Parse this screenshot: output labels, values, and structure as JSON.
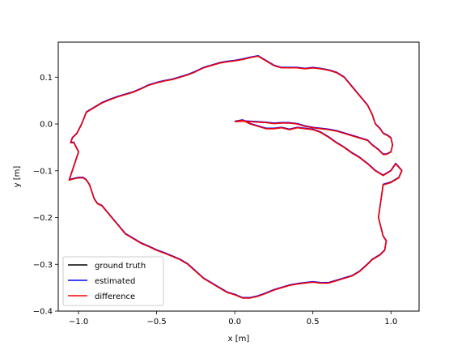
{
  "chart_data": {
    "type": "line",
    "title": "",
    "xlabel": "x [m]",
    "ylabel": "y [m]",
    "xlim": [
      -1.13,
      1.18
    ],
    "ylim": [
      -0.4,
      0.175
    ],
    "xticks": [
      -1.0,
      -0.5,
      0.0,
      0.5,
      1.0
    ],
    "xtick_labels": [
      "−1.0",
      "−0.5",
      "0.0",
      "0.5",
      "1.0"
    ],
    "yticks": [
      -0.4,
      -0.3,
      -0.2,
      -0.1,
      0.0,
      0.1
    ],
    "ytick_labels": [
      "−0.4",
      "−0.3",
      "−0.2",
      "−0.1",
      "0.0",
      "0.1"
    ],
    "grid": false,
    "legend_placement": "lower-left",
    "series": [
      {
        "name": "ground truth",
        "color": "#000000",
        "x": [
          0.0,
          0.05,
          0.1,
          0.15,
          0.2,
          0.25,
          0.3,
          0.35,
          0.4,
          0.45,
          0.5,
          0.55,
          0.6,
          0.65,
          0.7,
          0.75,
          0.8,
          0.85,
          0.9,
          0.95,
          1.0,
          1.03,
          1.07,
          1.05,
          1.0,
          0.95,
          0.92,
          0.95,
          0.97,
          0.96,
          0.93,
          0.88,
          0.85,
          0.8,
          0.75,
          0.7,
          0.65,
          0.6,
          0.55,
          0.5,
          0.45,
          0.4,
          0.35,
          0.3,
          0.25,
          0.2,
          0.15,
          0.1,
          0.05,
          0.0,
          -0.05,
          -0.1,
          -0.15,
          -0.2,
          -0.25,
          -0.3,
          -0.35,
          -0.4,
          -0.45,
          -0.5,
          -0.55,
          -0.6,
          -0.65,
          -0.7,
          -0.75,
          -0.8,
          -0.85,
          -0.88,
          -0.9,
          -0.91,
          -0.93,
          -0.95,
          -0.97,
          -1.0,
          -1.04,
          -1.06,
          -1.02,
          -1.0,
          -1.03,
          -1.05,
          -1.04,
          -1.01,
          -0.98,
          -0.95,
          -0.9,
          -0.85,
          -0.8,
          -0.75,
          -0.7,
          -0.65,
          -0.6,
          -0.55,
          -0.5,
          -0.45,
          -0.4,
          -0.35,
          -0.3,
          -0.25,
          -0.2,
          -0.15,
          -0.1,
          -0.05,
          0.0,
          0.05,
          0.1,
          0.15,
          0.2,
          0.25,
          0.3,
          0.35,
          0.4,
          0.45,
          0.5,
          0.55,
          0.6,
          0.65,
          0.7,
          0.75,
          0.8,
          0.85,
          0.88,
          0.9,
          0.93,
          0.95,
          0.98,
          1.0,
          1.01,
          1.0,
          0.97,
          0.95,
          0.92,
          0.88,
          0.85,
          0.8,
          0.75,
          0.7,
          0.65,
          0.6,
          0.55,
          0.5,
          0.45,
          0.4,
          0.35,
          0.3,
          0.25,
          0.2,
          0.15,
          0.1,
          0.05,
          0.0
        ],
        "y": [
          0.005,
          0.008,
          0.0,
          -0.005,
          -0.01,
          -0.01,
          -0.008,
          -0.012,
          -0.008,
          -0.01,
          -0.012,
          -0.018,
          -0.028,
          -0.04,
          -0.05,
          -0.062,
          -0.072,
          -0.085,
          -0.1,
          -0.11,
          -0.1,
          -0.085,
          -0.1,
          -0.115,
          -0.125,
          -0.13,
          -0.2,
          -0.24,
          -0.25,
          -0.27,
          -0.28,
          -0.29,
          -0.3,
          -0.315,
          -0.325,
          -0.33,
          -0.335,
          -0.34,
          -0.34,
          -0.338,
          -0.34,
          -0.342,
          -0.345,
          -0.35,
          -0.355,
          -0.362,
          -0.368,
          -0.372,
          -0.372,
          -0.365,
          -0.36,
          -0.35,
          -0.34,
          -0.33,
          -0.315,
          -0.3,
          -0.29,
          -0.283,
          -0.276,
          -0.27,
          -0.262,
          -0.255,
          -0.245,
          -0.235,
          -0.215,
          -0.195,
          -0.175,
          -0.17,
          -0.16,
          -0.15,
          -0.13,
          -0.12,
          -0.115,
          -0.115,
          -0.118,
          -0.12,
          -0.08,
          -0.06,
          -0.04,
          -0.04,
          -0.03,
          -0.02,
          -0.0,
          0.025,
          0.035,
          0.045,
          0.052,
          0.058,
          0.063,
          0.068,
          0.075,
          0.083,
          0.088,
          0.092,
          0.095,
          0.1,
          0.105,
          0.112,
          0.12,
          0.125,
          0.13,
          0.133,
          0.135,
          0.138,
          0.142,
          0.145,
          0.135,
          0.125,
          0.12,
          0.12,
          0.12,
          0.118,
          0.12,
          0.118,
          0.115,
          0.11,
          0.1,
          0.08,
          0.06,
          0.04,
          0.02,
          0.0,
          -0.01,
          -0.02,
          -0.025,
          -0.03,
          -0.045,
          -0.06,
          -0.065,
          -0.065,
          -0.055,
          -0.045,
          -0.035,
          -0.03,
          -0.025,
          -0.02,
          -0.015,
          -0.012,
          -0.01,
          -0.008,
          -0.005,
          0.0,
          0.002,
          0.002,
          0.001,
          0.003,
          0.004,
          0.005,
          0.006,
          0.005
        ]
      },
      {
        "name": "estimated",
        "color": "#0000ff",
        "x": [
          0.0,
          0.05,
          0.1,
          0.15,
          0.2,
          0.25,
          0.3,
          0.35,
          0.4,
          0.45,
          0.5,
          0.55,
          0.6,
          0.65,
          0.7,
          0.75,
          0.8,
          0.85,
          0.9,
          0.95,
          1.0,
          1.03,
          1.07,
          1.05,
          1.0,
          0.95,
          0.92,
          0.95,
          0.97,
          0.96,
          0.93,
          0.88,
          0.85,
          0.8,
          0.75,
          0.7,
          0.65,
          0.6,
          0.55,
          0.5,
          0.45,
          0.4,
          0.35,
          0.3,
          0.25,
          0.2,
          0.15,
          0.1,
          0.05,
          0.0,
          -0.05,
          -0.1,
          -0.15,
          -0.2,
          -0.25,
          -0.3,
          -0.35,
          -0.4,
          -0.45,
          -0.5,
          -0.55,
          -0.6,
          -0.65,
          -0.7,
          -0.75,
          -0.8,
          -0.85,
          -0.88,
          -0.9,
          -0.91,
          -0.93,
          -0.95,
          -0.97,
          -1.0,
          -1.04,
          -1.06,
          -1.02,
          -1.0,
          -1.03,
          -1.05,
          -1.04,
          -1.01,
          -0.98,
          -0.95,
          -0.9,
          -0.85,
          -0.8,
          -0.75,
          -0.7,
          -0.65,
          -0.6,
          -0.55,
          -0.5,
          -0.45,
          -0.4,
          -0.35,
          -0.3,
          -0.25,
          -0.2,
          -0.15,
          -0.1,
          -0.05,
          0.0,
          0.05,
          0.1,
          0.15,
          0.2,
          0.25,
          0.3,
          0.35,
          0.4,
          0.45,
          0.5,
          0.55,
          0.6,
          0.65,
          0.7,
          0.75,
          0.8,
          0.85,
          0.88,
          0.9,
          0.93,
          0.95,
          0.98,
          1.0,
          1.01,
          1.0,
          0.97,
          0.95,
          0.92,
          0.88,
          0.85,
          0.8,
          0.75,
          0.7,
          0.65,
          0.6,
          0.55,
          0.5,
          0.45,
          0.4,
          0.35,
          0.3,
          0.25,
          0.2,
          0.15,
          0.1,
          0.05,
          0.0
        ],
        "y": [
          0.006,
          0.009,
          0.001,
          -0.004,
          -0.009,
          -0.009,
          -0.007,
          -0.011,
          -0.007,
          -0.009,
          -0.011,
          -0.017,
          -0.027,
          -0.039,
          -0.049,
          -0.061,
          -0.071,
          -0.084,
          -0.099,
          -0.109,
          -0.099,
          -0.084,
          -0.099,
          -0.114,
          -0.124,
          -0.129,
          -0.199,
          -0.239,
          -0.249,
          -0.269,
          -0.279,
          -0.289,
          -0.299,
          -0.314,
          -0.324,
          -0.329,
          -0.334,
          -0.339,
          -0.339,
          -0.337,
          -0.339,
          -0.341,
          -0.344,
          -0.349,
          -0.354,
          -0.361,
          -0.367,
          -0.371,
          -0.371,
          -0.364,
          -0.359,
          -0.349,
          -0.339,
          -0.329,
          -0.314,
          -0.299,
          -0.289,
          -0.282,
          -0.275,
          -0.269,
          -0.261,
          -0.254,
          -0.244,
          -0.234,
          -0.214,
          -0.194,
          -0.174,
          -0.169,
          -0.159,
          -0.149,
          -0.129,
          -0.119,
          -0.114,
          -0.114,
          -0.117,
          -0.119,
          -0.079,
          -0.059,
          -0.039,
          -0.039,
          -0.029,
          -0.019,
          0.001,
          0.026,
          0.036,
          0.046,
          0.053,
          0.059,
          0.064,
          0.069,
          0.076,
          0.084,
          0.089,
          0.093,
          0.096,
          0.101,
          0.106,
          0.113,
          0.121,
          0.126,
          0.131,
          0.134,
          0.136,
          0.139,
          0.143,
          0.146,
          0.136,
          0.126,
          0.121,
          0.121,
          0.121,
          0.119,
          0.121,
          0.119,
          0.116,
          0.111,
          0.101,
          0.081,
          0.061,
          0.041,
          0.021,
          0.001,
          -0.009,
          -0.019,
          -0.024,
          -0.029,
          -0.044,
          -0.059,
          -0.064,
          -0.064,
          -0.054,
          -0.044,
          -0.034,
          -0.029,
          -0.024,
          -0.019,
          -0.014,
          -0.011,
          -0.009,
          -0.007,
          -0.004,
          0.001,
          0.003,
          0.003,
          0.002,
          0.004,
          0.005,
          0.006,
          0.007,
          0.006
        ]
      },
      {
        "name": "difference",
        "color": "#ff0000",
        "x": [
          0.0,
          0.05,
          0.1,
          0.15,
          0.2,
          0.25,
          0.3,
          0.35,
          0.4,
          0.45,
          0.5,
          0.55,
          0.6,
          0.65,
          0.7,
          0.75,
          0.8,
          0.85,
          0.9,
          0.95,
          1.0,
          1.03,
          1.07,
          1.05,
          1.0,
          0.95,
          0.92,
          0.95,
          0.97,
          0.96,
          0.93,
          0.88,
          0.85,
          0.8,
          0.75,
          0.7,
          0.65,
          0.6,
          0.55,
          0.5,
          0.45,
          0.4,
          0.35,
          0.3,
          0.25,
          0.2,
          0.15,
          0.1,
          0.05,
          0.0,
          -0.05,
          -0.1,
          -0.15,
          -0.2,
          -0.25,
          -0.3,
          -0.35,
          -0.4,
          -0.45,
          -0.5,
          -0.55,
          -0.6,
          -0.65,
          -0.7,
          -0.75,
          -0.8,
          -0.85,
          -0.88,
          -0.9,
          -0.91,
          -0.93,
          -0.95,
          -0.97,
          -1.0,
          -1.04,
          -1.06,
          -1.02,
          -1.0,
          -1.03,
          -1.05,
          -1.04,
          -1.01,
          -0.98,
          -0.95,
          -0.9,
          -0.85,
          -0.8,
          -0.75,
          -0.7,
          -0.65,
          -0.6,
          -0.55,
          -0.5,
          -0.45,
          -0.4,
          -0.35,
          -0.3,
          -0.25,
          -0.2,
          -0.15,
          -0.1,
          -0.05,
          0.0,
          0.05,
          0.1,
          0.15,
          0.2,
          0.25,
          0.3,
          0.35,
          0.4,
          0.45,
          0.5,
          0.55,
          0.6,
          0.65,
          0.7,
          0.75,
          0.8,
          0.85,
          0.88,
          0.9,
          0.93,
          0.95,
          0.98,
          1.0,
          1.01,
          1.0,
          0.97,
          0.95,
          0.92,
          0.88,
          0.85,
          0.8,
          0.75,
          0.7,
          0.65,
          0.6,
          0.55,
          0.5,
          0.45,
          0.4,
          0.35,
          0.3,
          0.25,
          0.2,
          0.15,
          0.1,
          0.05,
          0.0
        ],
        "y": [
          0.005,
          0.008,
          0.0,
          -0.005,
          -0.01,
          -0.01,
          -0.008,
          -0.012,
          -0.008,
          -0.01,
          -0.012,
          -0.018,
          -0.028,
          -0.04,
          -0.05,
          -0.062,
          -0.072,
          -0.085,
          -0.1,
          -0.11,
          -0.1,
          -0.085,
          -0.1,
          -0.115,
          -0.125,
          -0.13,
          -0.2,
          -0.24,
          -0.25,
          -0.27,
          -0.28,
          -0.29,
          -0.3,
          -0.315,
          -0.325,
          -0.33,
          -0.335,
          -0.34,
          -0.34,
          -0.338,
          -0.34,
          -0.342,
          -0.345,
          -0.35,
          -0.355,
          -0.362,
          -0.368,
          -0.372,
          -0.372,
          -0.365,
          -0.36,
          -0.35,
          -0.34,
          -0.33,
          -0.315,
          -0.3,
          -0.29,
          -0.283,
          -0.276,
          -0.27,
          -0.262,
          -0.255,
          -0.245,
          -0.235,
          -0.215,
          -0.195,
          -0.175,
          -0.17,
          -0.16,
          -0.15,
          -0.13,
          -0.12,
          -0.115,
          -0.115,
          -0.118,
          -0.12,
          -0.08,
          -0.06,
          -0.04,
          -0.04,
          -0.03,
          -0.02,
          -0.0,
          0.025,
          0.035,
          0.045,
          0.052,
          0.058,
          0.063,
          0.068,
          0.075,
          0.083,
          0.088,
          0.092,
          0.095,
          0.1,
          0.105,
          0.112,
          0.12,
          0.125,
          0.13,
          0.133,
          0.135,
          0.138,
          0.142,
          0.145,
          0.135,
          0.125,
          0.12,
          0.12,
          0.12,
          0.118,
          0.12,
          0.118,
          0.115,
          0.11,
          0.1,
          0.08,
          0.06,
          0.04,
          0.02,
          0.0,
          -0.01,
          -0.02,
          -0.025,
          -0.03,
          -0.045,
          -0.06,
          -0.065,
          -0.065,
          -0.055,
          -0.045,
          -0.035,
          -0.03,
          -0.025,
          -0.02,
          -0.015,
          -0.012,
          -0.01,
          -0.008,
          -0.005,
          0.0,
          0.002,
          0.002,
          0.001,
          0.003,
          0.004,
          0.005,
          0.006,
          0.005
        ]
      }
    ]
  }
}
